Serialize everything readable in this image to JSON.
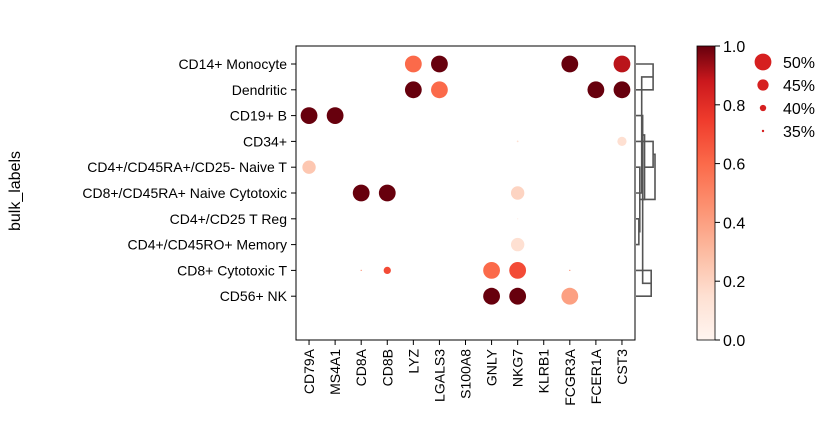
{
  "chart_data": {
    "type": "dotplot",
    "ylabel": "bulk_labels",
    "genes": [
      "CD79A",
      "MS4A1",
      "CD8A",
      "CD8B",
      "LYZ",
      "LGALS3",
      "S100A8",
      "GNLY",
      "NKG7",
      "KLRB1",
      "FCGR3A",
      "FCER1A",
      "CST3"
    ],
    "groups": [
      "CD14+ Monocyte",
      "Dendritic",
      "CD19+ B",
      "CD34+",
      "CD4+/CD45RA+/CD25- Naive T",
      "CD8+/CD45RA+ Naive Cytotoxic",
      "CD4+/CD25 T Reg",
      "CD4+/CD45RO+ Memory",
      "CD8+ Cytotoxic T",
      "CD56+ NK"
    ],
    "dots": [
      {
        "group": "CD14+ Monocyte",
        "gene": "LYZ",
        "value": 0.6,
        "fraction": 0.5
      },
      {
        "group": "CD14+ Monocyte",
        "gene": "LGALS3",
        "value": 1.0,
        "fraction": 0.5
      },
      {
        "group": "CD14+ Monocyte",
        "gene": "FCGR3A",
        "value": 1.0,
        "fraction": 0.5
      },
      {
        "group": "CD14+ Monocyte",
        "gene": "CST3",
        "value": 0.9,
        "fraction": 0.5
      },
      {
        "group": "Dendritic",
        "gene": "LYZ",
        "value": 1.0,
        "fraction": 0.5
      },
      {
        "group": "Dendritic",
        "gene": "LGALS3",
        "value": 0.6,
        "fraction": 0.5
      },
      {
        "group": "Dendritic",
        "gene": "FCER1A",
        "value": 1.0,
        "fraction": 0.5
      },
      {
        "group": "Dendritic",
        "gene": "CST3",
        "value": 1.0,
        "fraction": 0.5
      },
      {
        "group": "CD19+ B",
        "gene": "CD79A",
        "value": 1.0,
        "fraction": 0.5
      },
      {
        "group": "CD19+ B",
        "gene": "MS4A1",
        "value": 1.0,
        "fraction": 0.5
      },
      {
        "group": "CD34+",
        "gene": "NKG7",
        "value": 0.15,
        "fraction": 0.34
      },
      {
        "group": "CD34+",
        "gene": "CST3",
        "value": 0.15,
        "fraction": 0.43
      },
      {
        "group": "CD4+/CD45RA+/CD25- Naive T",
        "gene": "CD79A",
        "value": 0.25,
        "fraction": 0.47
      },
      {
        "group": "CD8+/CD45RA+ Naive Cytotoxic",
        "gene": "CD8A",
        "value": 1.0,
        "fraction": 0.5
      },
      {
        "group": "CD8+/CD45RA+ Naive Cytotoxic",
        "gene": "CD8B",
        "value": 1.0,
        "fraction": 0.5
      },
      {
        "group": "CD8+/CD45RA+ Naive Cytotoxic",
        "gene": "NKG7",
        "value": 0.2,
        "fraction": 0.47
      },
      {
        "group": "CD4+/CD25 T Reg",
        "gene": "NKG7",
        "value": 0.05,
        "fraction": 0.3
      },
      {
        "group": "CD4+/CD45RO+ Memory",
        "gene": "NKG7",
        "value": 0.15,
        "fraction": 0.47
      },
      {
        "group": "CD8+ Cytotoxic T",
        "gene": "CD8A",
        "value": 0.5,
        "fraction": 0.31
      },
      {
        "group": "CD8+ Cytotoxic T",
        "gene": "CD8B",
        "value": 0.7,
        "fraction": 0.41
      },
      {
        "group": "CD8+ Cytotoxic T",
        "gene": "GNLY",
        "value": 0.6,
        "fraction": 0.5
      },
      {
        "group": "CD8+ Cytotoxic T",
        "gene": "NKG7",
        "value": 0.7,
        "fraction": 0.5
      },
      {
        "group": "CD8+ Cytotoxic T",
        "gene": "FCGR3A",
        "value": 0.5,
        "fraction": 0.31
      },
      {
        "group": "CD56+ NK",
        "gene": "GNLY",
        "value": 1.0,
        "fraction": 0.5
      },
      {
        "group": "CD56+ NK",
        "gene": "NKG7",
        "value": 1.0,
        "fraction": 0.5
      },
      {
        "group": "CD56+ NK",
        "gene": "FCGR3A",
        "value": 0.4,
        "fraction": 0.5
      }
    ],
    "colorbar": {
      "min": 0.0,
      "max": 1.0,
      "ticks": [
        "0.0",
        "0.2",
        "0.4",
        "0.6",
        "0.8",
        "1.0"
      ],
      "colormap": "Reds"
    },
    "size_legend": [
      {
        "label": "50%",
        "fraction": 0.5
      },
      {
        "label": "45%",
        "fraction": 0.45
      },
      {
        "label": "40%",
        "fraction": 0.4
      },
      {
        "label": "35%",
        "fraction": 0.35
      }
    ],
    "dendrogram": [
      {
        "a": 0,
        "b": 1,
        "h": 0.9
      },
      {
        "a": 8,
        "b": 9,
        "h": 0.8
      },
      {
        "a": 2,
        "b": "n2",
        "h": 0.35
      },
      {
        "a": 5,
        "b": "n1",
        "h": 0.3
      },
      {
        "a": 6,
        "b": 7,
        "h": 0.15
      },
      {
        "a": 4,
        "b": "n5",
        "h": 0.2
      },
      {
        "a": "n4",
        "b": "n6",
        "h": 0.45
      },
      {
        "a": 3,
        "b": "n7",
        "h": 0.9
      },
      {
        "a": "n3",
        "b": "n8",
        "h": 1.0
      }
    ]
  },
  "colors": {
    "low": "#fff5f0",
    "mid": "#fb6a4a",
    "high": "#67000d",
    "axis": "#000000",
    "dendro": "#555555"
  }
}
